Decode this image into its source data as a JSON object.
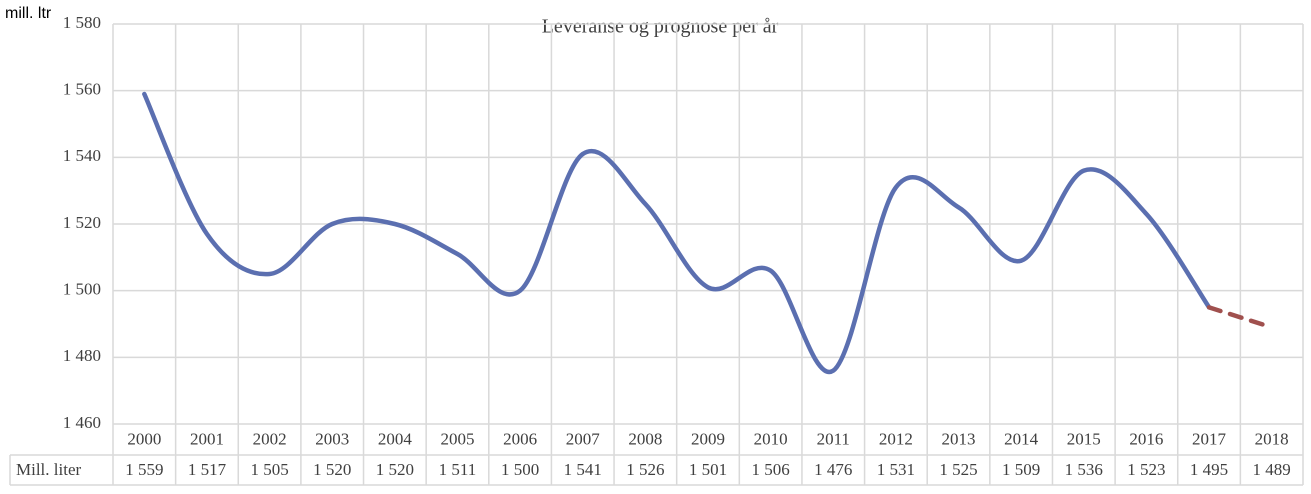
{
  "chart_data": {
    "type": "line",
    "title": "Leveranse og prognose per år",
    "y_label": "mill. ltr",
    "categories": [
      "2000",
      "2001",
      "2002",
      "2003",
      "2004",
      "2005",
      "2006",
      "2007",
      "2008",
      "2009",
      "2010",
      "2011",
      "2012",
      "2013",
      "2014",
      "2015",
      "2016",
      "2017",
      "2018"
    ],
    "series": [
      {
        "name": "Mill. liter",
        "color": "#5b6fb0",
        "values": [
          1559,
          1517,
          1505,
          1520,
          1520,
          1511,
          1500,
          1541,
          1526,
          1501,
          1506,
          1476,
          1531,
          1525,
          1509,
          1536,
          1523,
          1495,
          1489
        ],
        "value_labels": [
          "1 559",
          "1 517",
          "1 505",
          "1 520",
          "1 520",
          "1 511",
          "1 500",
          "1 541",
          "1 526",
          "1 501",
          "1 506",
          "1 476",
          "1 531",
          "1 525",
          "1 509",
          "1 536",
          "1 523",
          "1 495",
          "1 489"
        ]
      }
    ],
    "forecast": {
      "from": "2017",
      "color": "#a0504e",
      "dashed": true
    },
    "smooth": true,
    "ylim": [
      1460,
      1580
    ],
    "yticks": [
      {
        "value": 1460,
        "label": "1 460"
      },
      {
        "value": 1480,
        "label": "1 480"
      },
      {
        "value": 1500,
        "label": "1 500"
      },
      {
        "value": 1520,
        "label": "1 520"
      },
      {
        "value": 1540,
        "label": "1 540"
      },
      {
        "value": 1560,
        "label": "1 560"
      },
      {
        "value": 1580,
        "label": "1 580"
      }
    ],
    "grid": true,
    "data_table": true
  }
}
